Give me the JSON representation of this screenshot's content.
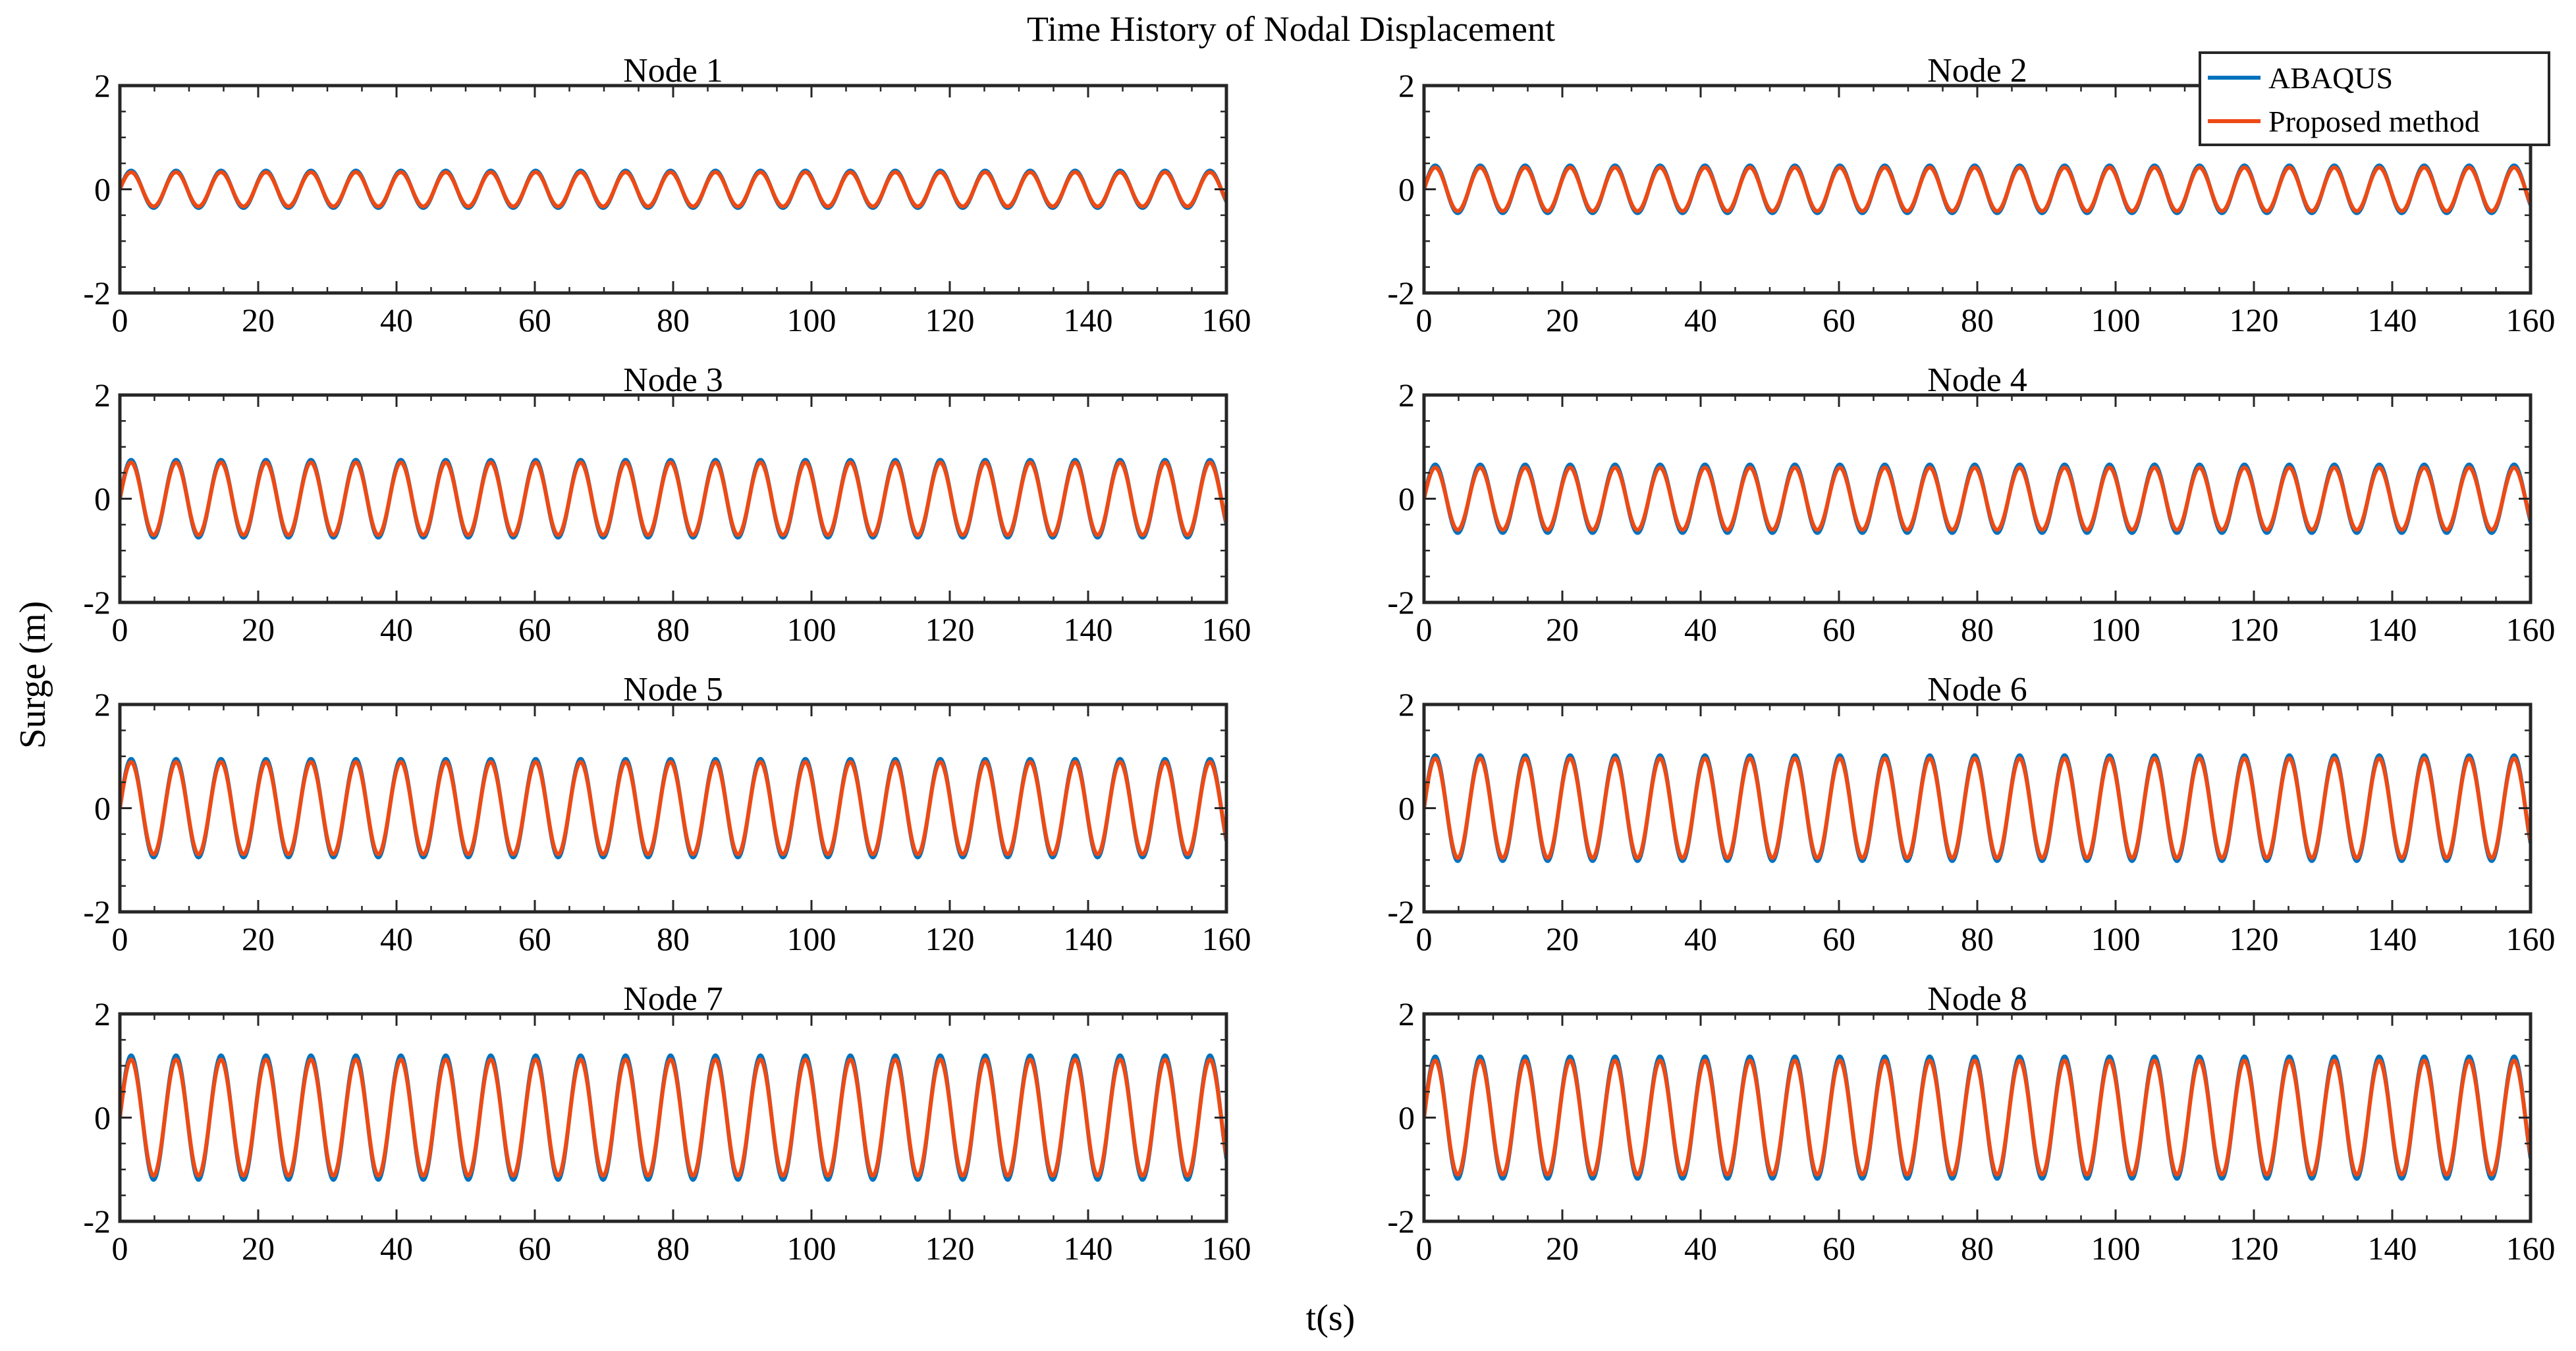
{
  "chart_data": {
    "type": "line",
    "title": "Time History of Nodal Displacement",
    "xlabel": "t(s)",
    "ylabel": "Surge (m)",
    "xlim": [
      0,
      160
    ],
    "ylim": [
      -2,
      2
    ],
    "xticks": [
      0,
      20,
      40,
      60,
      80,
      100,
      120,
      140,
      160
    ],
    "yticks": [
      -2,
      0,
      2
    ],
    "wave_period_s": 6.5,
    "legend": {
      "position": "top-right",
      "entries": [
        {
          "name": "ABAQUS",
          "color": "#0072BD"
        },
        {
          "name": "Proposed method",
          "color": "#EE4A14"
        }
      ]
    },
    "panels": [
      {
        "title": "Node 1",
        "series": [
          {
            "name": "ABAQUS",
            "amplitude": 0.36
          },
          {
            "name": "Proposed method",
            "amplitude": 0.33
          }
        ]
      },
      {
        "title": "Node 2",
        "series": [
          {
            "name": "ABAQUS",
            "amplitude": 0.46
          },
          {
            "name": "Proposed method",
            "amplitude": 0.42
          }
        ]
      },
      {
        "title": "Node 3",
        "series": [
          {
            "name": "ABAQUS",
            "amplitude": 0.75
          },
          {
            "name": "Proposed method",
            "amplitude": 0.7
          }
        ]
      },
      {
        "title": "Node 4",
        "series": [
          {
            "name": "ABAQUS",
            "amplitude": 0.66
          },
          {
            "name": "Proposed method",
            "amplitude": 0.6
          }
        ]
      },
      {
        "title": "Node 5",
        "series": [
          {
            "name": "ABAQUS",
            "amplitude": 0.95
          },
          {
            "name": "Proposed method",
            "amplitude": 0.89
          }
        ]
      },
      {
        "title": "Node 6",
        "series": [
          {
            "name": "ABAQUS",
            "amplitude": 1.02
          },
          {
            "name": "Proposed method",
            "amplitude": 0.96
          }
        ]
      },
      {
        "title": "Node 7",
        "series": [
          {
            "name": "ABAQUS",
            "amplitude": 1.2
          },
          {
            "name": "Proposed method",
            "amplitude": 1.12
          }
        ]
      },
      {
        "title": "Node 8",
        "series": [
          {
            "name": "ABAQUS",
            "amplitude": 1.18
          },
          {
            "name": "Proposed method",
            "amplitude": 1.1
          }
        ]
      }
    ]
  }
}
